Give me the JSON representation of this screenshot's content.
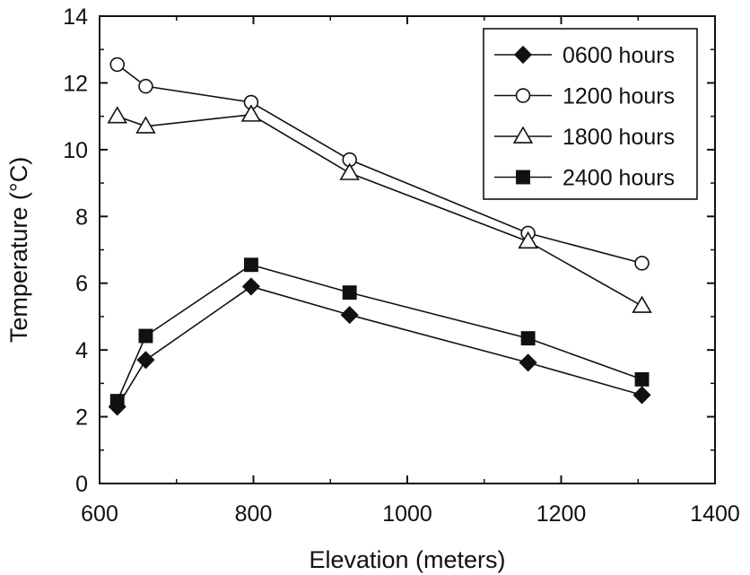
{
  "chart_data": {
    "type": "line",
    "title": "",
    "xlabel": "Elevation (meters)",
    "ylabel": "Temperature (°C)",
    "xlim": [
      600,
      1400
    ],
    "ylim": [
      0,
      14
    ],
    "x_ticks": [
      600,
      800,
      1000,
      1200,
      1400
    ],
    "x_minor_ticks": [
      700,
      900,
      1100,
      1300
    ],
    "y_ticks": [
      0,
      2,
      4,
      6,
      8,
      10,
      12,
      14
    ],
    "y_minor_ticks": [
      1,
      3,
      5,
      7,
      9,
      11,
      13
    ],
    "grid": false,
    "legend_position": "top-right",
    "x": [
      623,
      660,
      797,
      925,
      1157,
      1305
    ],
    "series": [
      {
        "name": "0600 hours",
        "marker": "diamond-filled",
        "values": [
          2.3,
          3.7,
          5.9,
          5.05,
          3.62,
          2.65
        ]
      },
      {
        "name": "1200 hours",
        "marker": "circle-open",
        "values": [
          12.55,
          11.9,
          11.42,
          9.7,
          7.5,
          6.6
        ]
      },
      {
        "name": "1800 hours",
        "marker": "triangle-open",
        "values": [
          11.0,
          10.7,
          11.05,
          9.3,
          7.25,
          5.32
        ]
      },
      {
        "name": "2400 hours",
        "marker": "square-filled",
        "values": [
          2.47,
          4.42,
          6.55,
          5.72,
          4.35,
          3.12
        ]
      }
    ]
  }
}
